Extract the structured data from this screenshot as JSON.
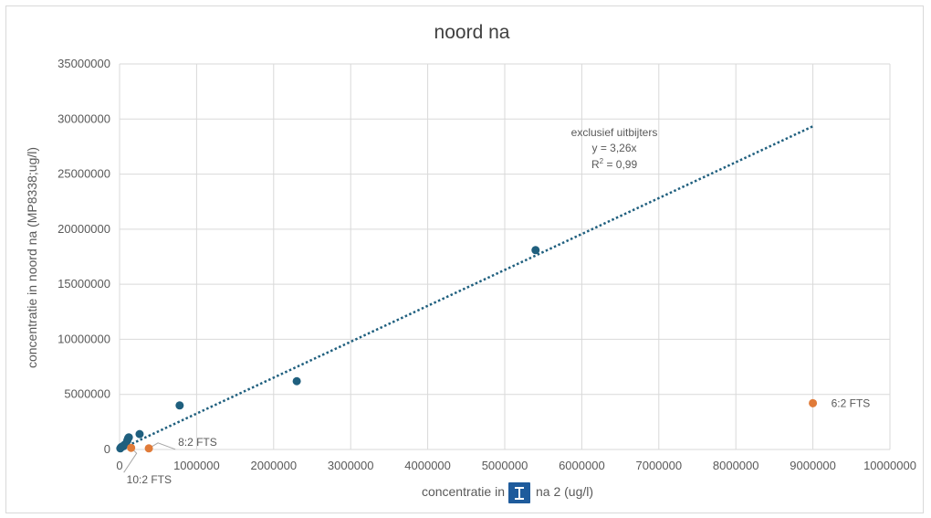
{
  "chart_data": {
    "type": "scatter",
    "title": "noord na",
    "xlabel": "concentratie in",
    "xlabel_suffix": "na 2 (ug/l)",
    "ylabel": "concentratie in noord na (MP8338;ug/l)",
    "xlim": [
      0,
      10000000
    ],
    "ylim": [
      0,
      35000000
    ],
    "x_ticks": [
      0,
      1000000,
      2000000,
      3000000,
      4000000,
      5000000,
      6000000,
      7000000,
      8000000,
      9000000,
      10000000
    ],
    "y_ticks": [
      0,
      5000000,
      10000000,
      15000000,
      20000000,
      25000000,
      30000000,
      35000000
    ],
    "grid": true,
    "colors": {
      "main": "#1f5f7e",
      "outlier": "#e07b39",
      "trend": "#1f5f7e",
      "cursor_icon": "#1e5b9c"
    },
    "cursor_icon": "text-cursor-icon",
    "series": [
      {
        "points": [
          {
            "x": 10000,
            "y": 100000
          },
          {
            "x": 20000,
            "y": 200000
          },
          {
            "x": 30000,
            "y": 250000
          },
          {
            "x": 50000,
            "y": 300000
          },
          {
            "x": 60000,
            "y": 400000
          },
          {
            "x": 80000,
            "y": 500000
          },
          {
            "x": 100000,
            "y": 800000
          },
          {
            "x": 110000,
            "y": 1000000
          },
          {
            "x": 120000,
            "y": 1100000
          },
          {
            "x": 260000,
            "y": 1400000
          },
          {
            "x": 780000,
            "y": 4000000
          },
          {
            "x": 2300000,
            "y": 6200000
          },
          {
            "x": 5400000,
            "y": 18100000
          }
        ]
      },
      {
        "points": [
          {
            "x": 9000000,
            "y": 4200000,
            "label": "6:2 FTS"
          },
          {
            "x": 380000,
            "y": 100000,
            "label": "8:2 FTS"
          },
          {
            "x": 150000,
            "y": 150000,
            "label": "10:2 FTS"
          }
        ]
      }
    ],
    "trendline": {
      "x_range": [
        0,
        9000000
      ],
      "slope": 3.26,
      "annotation": [
        "exclusief uitbijters",
        "y = 3,26x",
        "R",
        "2",
        " = 0,99"
      ]
    }
  }
}
